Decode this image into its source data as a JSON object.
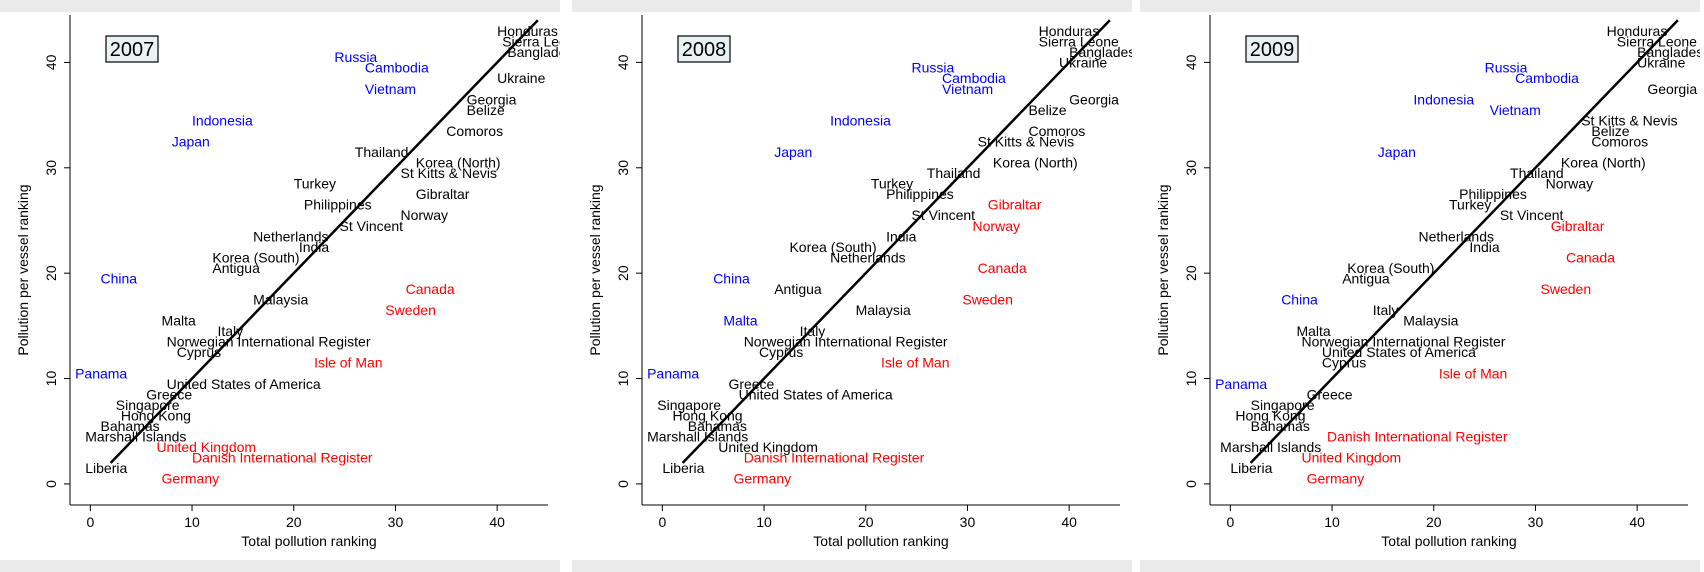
{
  "colors": {
    "black": "#000000",
    "blue": "#0000ff",
    "red": "#ff0000"
  },
  "chart_data": [
    {
      "type": "scatter",
      "year": "2007",
      "xlabel": "Total pollution ranking",
      "ylabel": "Pollution per vessel ranking",
      "xlim": [
        -2,
        45
      ],
      "ylim": [
        -2,
        44.5
      ],
      "xticks": [
        0,
        10,
        20,
        30,
        40
      ],
      "yticks": [
        0,
        10,
        20,
        30,
        40
      ],
      "xtick_labels": [
        "0",
        "10",
        "20",
        "30",
        "40"
      ],
      "ytick_labels": [
        "0",
        "10",
        "20",
        "30",
        "40"
      ],
      "fit_line": [
        [
          2,
          2
        ],
        [
          44,
          44
        ]
      ],
      "points": [
        {
          "label": "Honduras",
          "x": 40,
          "y": 43,
          "color": "black"
        },
        {
          "label": "Sierra Leone",
          "x": 40.5,
          "y": 42,
          "color": "black"
        },
        {
          "label": "Bangladesh",
          "x": 41,
          "y": 41,
          "color": "black"
        },
        {
          "label": "Russia",
          "x": 24,
          "y": 40.5,
          "color": "blue"
        },
        {
          "label": "Cambodia",
          "x": 27,
          "y": 39.5,
          "color": "blue"
        },
        {
          "label": "Ukraine",
          "x": 40,
          "y": 38.5,
          "color": "black"
        },
        {
          "label": "Vietnam",
          "x": 27,
          "y": 37.5,
          "color": "blue"
        },
        {
          "label": "Georgia",
          "x": 37,
          "y": 36.5,
          "color": "black"
        },
        {
          "label": "Belize",
          "x": 37,
          "y": 35.5,
          "color": "black"
        },
        {
          "label": "Indonesia",
          "x": 10,
          "y": 34.5,
          "color": "blue"
        },
        {
          "label": "Comoros",
          "x": 35,
          "y": 33.5,
          "color": "black"
        },
        {
          "label": "Japan",
          "x": 8,
          "y": 32.5,
          "color": "blue"
        },
        {
          "label": "Thailand",
          "x": 26,
          "y": 31.5,
          "color": "black"
        },
        {
          "label": "Korea (North)",
          "x": 32,
          "y": 30.5,
          "color": "black"
        },
        {
          "label": "St Kitts & Nevis",
          "x": 30.5,
          "y": 29.5,
          "color": "black"
        },
        {
          "label": "Turkey",
          "x": 20,
          "y": 28.5,
          "color": "black"
        },
        {
          "label": "Gibraltar",
          "x": 32,
          "y": 27.5,
          "color": "black"
        },
        {
          "label": "Philippines",
          "x": 21,
          "y": 26.5,
          "color": "black"
        },
        {
          "label": "Norway",
          "x": 30.5,
          "y": 25.5,
          "color": "black"
        },
        {
          "label": "St Vincent",
          "x": 24.5,
          "y": 24.5,
          "color": "black"
        },
        {
          "label": "Netherlands",
          "x": 16,
          "y": 23.5,
          "color": "black"
        },
        {
          "label": "India",
          "x": 20.5,
          "y": 22.5,
          "color": "black"
        },
        {
          "label": "Korea (South)",
          "x": 12,
          "y": 21.5,
          "color": "black"
        },
        {
          "label": "Antigua",
          "x": 12,
          "y": 20.5,
          "color": "black"
        },
        {
          "label": "China",
          "x": 1,
          "y": 19.5,
          "color": "blue"
        },
        {
          "label": "Canada",
          "x": 31,
          "y": 18.5,
          "color": "red"
        },
        {
          "label": "Malaysia",
          "x": 16,
          "y": 17.5,
          "color": "black"
        },
        {
          "label": "Sweden",
          "x": 29,
          "y": 16.5,
          "color": "red"
        },
        {
          "label": "Malta",
          "x": 7,
          "y": 15.5,
          "color": "black"
        },
        {
          "label": "Italy",
          "x": 12.5,
          "y": 14.5,
          "color": "black"
        },
        {
          "label": "Norwegian International Register",
          "x": 7.5,
          "y": 13.5,
          "color": "black"
        },
        {
          "label": "Cyprus",
          "x": 8.5,
          "y": 12.5,
          "color": "black"
        },
        {
          "label": "Isle of Man",
          "x": 22,
          "y": 11.5,
          "color": "red"
        },
        {
          "label": "Panama",
          "x": -1.5,
          "y": 10.5,
          "color": "blue"
        },
        {
          "label": "United States of America",
          "x": 7.5,
          "y": 9.5,
          "color": "black"
        },
        {
          "label": "Greece",
          "x": 5.5,
          "y": 8.5,
          "color": "black"
        },
        {
          "label": "Singapore",
          "x": 2.5,
          "y": 7.5,
          "color": "black"
        },
        {
          "label": "Hong Kong",
          "x": 3,
          "y": 6.5,
          "color": "black"
        },
        {
          "label": "Bahamas",
          "x": 1,
          "y": 5.5,
          "color": "black"
        },
        {
          "label": "Marshall Islands",
          "x": -0.5,
          "y": 4.5,
          "color": "black"
        },
        {
          "label": "United Kingdom",
          "x": 6.5,
          "y": 3.5,
          "color": "red"
        },
        {
          "label": "Danish International Register",
          "x": 10,
          "y": 2.5,
          "color": "red"
        },
        {
          "label": "Liberia",
          "x": -0.5,
          "y": 1.5,
          "color": "black"
        },
        {
          "label": "Germany",
          "x": 7,
          "y": 0.5,
          "color": "red"
        }
      ]
    },
    {
      "type": "scatter",
      "year": "2008",
      "xlabel": "Total pollution ranking",
      "ylabel": "Pollution per vessel ranking",
      "xlim": [
        -2,
        45
      ],
      "ylim": [
        -2,
        44.5
      ],
      "xticks": [
        0,
        10,
        20,
        30,
        40
      ],
      "yticks": [
        0,
        10,
        20,
        30,
        40
      ],
      "xtick_labels": [
        "0",
        "10",
        "20",
        "30",
        "40"
      ],
      "ytick_labels": [
        "0",
        "10",
        "20",
        "30",
        "40"
      ],
      "fit_line": [
        [
          2,
          2
        ],
        [
          44,
          44
        ]
      ],
      "points": [
        {
          "label": "Honduras",
          "x": 37,
          "y": 43,
          "color": "black"
        },
        {
          "label": "Sierra Leone",
          "x": 37,
          "y": 42,
          "color": "black"
        },
        {
          "label": "Bangladesh",
          "x": 40,
          "y": 41,
          "color": "black"
        },
        {
          "label": "Ukraine",
          "x": 39,
          "y": 40,
          "color": "black"
        },
        {
          "label": "Russia",
          "x": 24.5,
          "y": 39.5,
          "color": "blue"
        },
        {
          "label": "Cambodia",
          "x": 27.5,
          "y": 38.5,
          "color": "blue"
        },
        {
          "label": "Vietnam",
          "x": 27.5,
          "y": 37.5,
          "color": "blue"
        },
        {
          "label": "Georgia",
          "x": 40,
          "y": 36.5,
          "color": "black"
        },
        {
          "label": "Belize",
          "x": 36,
          "y": 35.5,
          "color": "black"
        },
        {
          "label": "Indonesia",
          "x": 16.5,
          "y": 34.5,
          "color": "blue"
        },
        {
          "label": "Comoros",
          "x": 36,
          "y": 33.5,
          "color": "black"
        },
        {
          "label": "St Kitts & Nevis",
          "x": 31,
          "y": 32.5,
          "color": "black"
        },
        {
          "label": "Japan",
          "x": 11,
          "y": 31.5,
          "color": "blue"
        },
        {
          "label": "Korea (North)",
          "x": 32.5,
          "y": 30.5,
          "color": "black"
        },
        {
          "label": "Thailand",
          "x": 26,
          "y": 29.5,
          "color": "black"
        },
        {
          "label": "Turkey",
          "x": 20.5,
          "y": 28.5,
          "color": "black"
        },
        {
          "label": "Philippines",
          "x": 22,
          "y": 27.5,
          "color": "black"
        },
        {
          "label": "Gibraltar",
          "x": 32,
          "y": 26.5,
          "color": "red"
        },
        {
          "label": "St Vincent",
          "x": 24.5,
          "y": 25.5,
          "color": "black"
        },
        {
          "label": "Norway",
          "x": 30.5,
          "y": 24.5,
          "color": "red"
        },
        {
          "label": "India",
          "x": 22,
          "y": 23.5,
          "color": "black"
        },
        {
          "label": "Korea (South)",
          "x": 12.5,
          "y": 22.5,
          "color": "black"
        },
        {
          "label": "Netherlands",
          "x": 16.5,
          "y": 21.5,
          "color": "black"
        },
        {
          "label": "Canada",
          "x": 31,
          "y": 20.5,
          "color": "red"
        },
        {
          "label": "China",
          "x": 5,
          "y": 19.5,
          "color": "blue"
        },
        {
          "label": "Antigua",
          "x": 11,
          "y": 18.5,
          "color": "black"
        },
        {
          "label": "Sweden",
          "x": 29.5,
          "y": 17.5,
          "color": "red"
        },
        {
          "label": "Malaysia",
          "x": 19,
          "y": 16.5,
          "color": "black"
        },
        {
          "label": "Malta",
          "x": 6,
          "y": 15.5,
          "color": "blue"
        },
        {
          "label": "Italy",
          "x": 13.5,
          "y": 14.5,
          "color": "black"
        },
        {
          "label": "Norwegian International Register",
          "x": 8,
          "y": 13.5,
          "color": "black"
        },
        {
          "label": "Cyprus",
          "x": 9.5,
          "y": 12.5,
          "color": "black"
        },
        {
          "label": "Isle of Man",
          "x": 21.5,
          "y": 11.5,
          "color": "red"
        },
        {
          "label": "Panama",
          "x": -1.5,
          "y": 10.5,
          "color": "blue"
        },
        {
          "label": "Greece",
          "x": 6.5,
          "y": 9.5,
          "color": "black"
        },
        {
          "label": "United States of America",
          "x": 7.5,
          "y": 8.5,
          "color": "black"
        },
        {
          "label": "Singapore",
          "x": -0.5,
          "y": 7.5,
          "color": "black"
        },
        {
          "label": "Hong Kong",
          "x": 1,
          "y": 6.5,
          "color": "black"
        },
        {
          "label": "Bahamas",
          "x": 2.5,
          "y": 5.5,
          "color": "black"
        },
        {
          "label": "Marshall Islands",
          "x": -1.5,
          "y": 4.5,
          "color": "black"
        },
        {
          "label": "United Kingdom",
          "x": 5.5,
          "y": 3.5,
          "color": "black"
        },
        {
          "label": "Danish International Register",
          "x": 8,
          "y": 2.5,
          "color": "red"
        },
        {
          "label": "Liberia",
          "x": 0,
          "y": 1.5,
          "color": "black"
        },
        {
          "label": "Germany",
          "x": 7,
          "y": 0.5,
          "color": "red"
        }
      ]
    },
    {
      "type": "scatter",
      "year": "2009",
      "xlabel": "Total pollution ranking",
      "ylabel": "Pollution per vessel ranking",
      "xlim": [
        -2,
        45
      ],
      "ylim": [
        -2,
        44.5
      ],
      "xticks": [
        0,
        10,
        20,
        30,
        40
      ],
      "yticks": [
        0,
        10,
        20,
        30,
        40
      ],
      "xtick_labels": [
        "0",
        "10",
        "20",
        "30",
        "40"
      ],
      "ytick_labels": [
        "0",
        "10",
        "20",
        "30",
        "40"
      ],
      "fit_line": [
        [
          2,
          2
        ],
        [
          44,
          44
        ]
      ],
      "points": [
        {
          "label": "Honduras",
          "x": 37,
          "y": 43,
          "color": "black"
        },
        {
          "label": "Sierra Leone",
          "x": 38,
          "y": 42,
          "color": "black"
        },
        {
          "label": "Bangladesh",
          "x": 40,
          "y": 41,
          "color": "black"
        },
        {
          "label": "Ukraine",
          "x": 40,
          "y": 40,
          "color": "black"
        },
        {
          "label": "Russia",
          "x": 25,
          "y": 39.5,
          "color": "blue"
        },
        {
          "label": "Cambodia",
          "x": 28,
          "y": 38.5,
          "color": "blue"
        },
        {
          "label": "Georgia",
          "x": 41,
          "y": 37.5,
          "color": "black"
        },
        {
          "label": "Indonesia",
          "x": 18,
          "y": 36.5,
          "color": "blue"
        },
        {
          "label": "Vietnam",
          "x": 25.5,
          "y": 35.5,
          "color": "blue"
        },
        {
          "label": "St Kitts & Nevis",
          "x": 34.5,
          "y": 34.5,
          "color": "black"
        },
        {
          "label": "Belize",
          "x": 35.5,
          "y": 33.5,
          "color": "black"
        },
        {
          "label": "Comoros",
          "x": 35.5,
          "y": 32.5,
          "color": "black"
        },
        {
          "label": "Japan",
          "x": 14.5,
          "y": 31.5,
          "color": "blue"
        },
        {
          "label": "Korea (North)",
          "x": 32.5,
          "y": 30.5,
          "color": "black"
        },
        {
          "label": "Thailand",
          "x": 27.5,
          "y": 29.5,
          "color": "black"
        },
        {
          "label": "Norway",
          "x": 31,
          "y": 28.5,
          "color": "black"
        },
        {
          "label": "Philippines",
          "x": 22.5,
          "y": 27.5,
          "color": "black"
        },
        {
          "label": "Turkey",
          "x": 21.5,
          "y": 26.5,
          "color": "black"
        },
        {
          "label": "St Vincent",
          "x": 26.5,
          "y": 25.5,
          "color": "black"
        },
        {
          "label": "Gibraltar",
          "x": 31.5,
          "y": 24.5,
          "color": "red"
        },
        {
          "label": "Netherlands",
          "x": 18.5,
          "y": 23.5,
          "color": "black"
        },
        {
          "label": "India",
          "x": 23.5,
          "y": 22.5,
          "color": "black"
        },
        {
          "label": "Canada",
          "x": 33,
          "y": 21.5,
          "color": "red"
        },
        {
          "label": "Korea (South)",
          "x": 11.5,
          "y": 20.5,
          "color": "black"
        },
        {
          "label": "Antigua",
          "x": 11,
          "y": 19.5,
          "color": "black"
        },
        {
          "label": "Sweden",
          "x": 30.5,
          "y": 18.5,
          "color": "red"
        },
        {
          "label": "China",
          "x": 5,
          "y": 17.5,
          "color": "blue"
        },
        {
          "label": "Italy",
          "x": 14,
          "y": 16.5,
          "color": "black"
        },
        {
          "label": "Malaysia",
          "x": 17,
          "y": 15.5,
          "color": "black"
        },
        {
          "label": "Malta",
          "x": 6.5,
          "y": 14.5,
          "color": "black"
        },
        {
          "label": "Norwegian International Register",
          "x": 7,
          "y": 13.5,
          "color": "black"
        },
        {
          "label": "United States of America",
          "x": 9,
          "y": 12.5,
          "color": "black"
        },
        {
          "label": "Cyprus",
          "x": 9,
          "y": 11.5,
          "color": "black"
        },
        {
          "label": "Isle of Man",
          "x": 20.5,
          "y": 10.5,
          "color": "red"
        },
        {
          "label": "Panama",
          "x": -1.5,
          "y": 9.5,
          "color": "blue"
        },
        {
          "label": "Greece",
          "x": 7.5,
          "y": 8.5,
          "color": "black"
        },
        {
          "label": "Singapore",
          "x": 2,
          "y": 7.5,
          "color": "black"
        },
        {
          "label": "Hong Kong",
          "x": 0.5,
          "y": 6.5,
          "color": "black"
        },
        {
          "label": "Bahamas",
          "x": 2,
          "y": 5.5,
          "color": "black"
        },
        {
          "label": "Danish International Register",
          "x": 9.5,
          "y": 4.5,
          "color": "red"
        },
        {
          "label": "Marshall Islands",
          "x": -1,
          "y": 3.5,
          "color": "black"
        },
        {
          "label": "United Kingdom",
          "x": 7,
          "y": 2.5,
          "color": "red"
        },
        {
          "label": "Liberia",
          "x": 0,
          "y": 1.5,
          "color": "black"
        },
        {
          "label": "Germany",
          "x": 7.5,
          "y": 0.5,
          "color": "red"
        }
      ]
    }
  ]
}
